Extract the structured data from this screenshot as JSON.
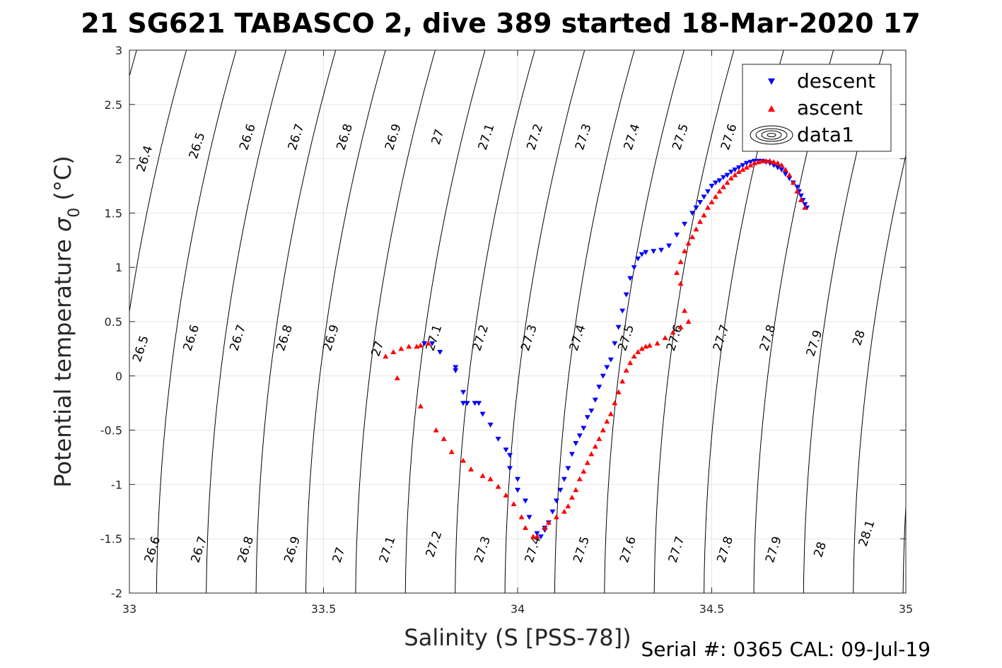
{
  "title": "21 SG621 TABASCO 2, dive 389 started 18-Mar-2020 17",
  "footer": "Serial #: 0365  CAL: 09-Jul-19",
  "chart_data": {
    "type": "scatter",
    "xlabel": "Salinity (S [PSS-78])",
    "ylabel_main": "Potential temperature ",
    "ylabel_sigma": "σ",
    "ylabel_sub": "0",
    "ylabel_unit": " (°C)",
    "xlim": [
      33,
      35
    ],
    "ylim": [
      -2,
      3
    ],
    "xticks": [
      33,
      33.5,
      34,
      34.5,
      35
    ],
    "xtick_labels": [
      "33",
      "33.5",
      "34",
      "34.5",
      "35"
    ],
    "yticks": [
      3,
      2.5,
      2,
      1.5,
      1,
      0.5,
      0,
      -0.5,
      -1,
      -1.5,
      -2
    ],
    "ytick_labels": [
      "3",
      "2.5",
      "2",
      "1.5",
      "1",
      "0.5",
      "0",
      "-0.5",
      "-1",
      "-1.5",
      "-2"
    ],
    "grid": true,
    "legend_position": "top-right",
    "legend": [
      "descent",
      "ascent",
      "data1"
    ],
    "colors": {
      "descent": "#0000ff",
      "ascent": "#ff0000",
      "contour": "#000000",
      "grid": "#e6e6e6"
    },
    "contour_levels": [
      26.4,
      26.5,
      26.6,
      26.7,
      26.8,
      26.9,
      27.0,
      27.1,
      27.2,
      27.3,
      27.4,
      27.5,
      27.6,
      27.7,
      27.8,
      27.9,
      28.0,
      28.1
    ],
    "contour_labels": [
      {
        "text": "26.4",
        "x": 33.04,
        "y": 2.0
      },
      {
        "text": "26.5",
        "x": 33.175,
        "y": 2.12
      },
      {
        "text": "26.6",
        "x": 33.305,
        "y": 2.2
      },
      {
        "text": "26.7",
        "x": 33.43,
        "y": 2.2
      },
      {
        "text": "26.8",
        "x": 33.555,
        "y": 2.2
      },
      {
        "text": "26.9",
        "x": 33.68,
        "y": 2.2
      },
      {
        "text": "27",
        "x": 33.795,
        "y": 2.2
      },
      {
        "text": "27.1",
        "x": 33.92,
        "y": 2.2
      },
      {
        "text": "27.2",
        "x": 34.045,
        "y": 2.2
      },
      {
        "text": "27.3",
        "x": 34.17,
        "y": 2.2
      },
      {
        "text": "27.4",
        "x": 34.295,
        "y": 2.2
      },
      {
        "text": "27.5",
        "x": 34.42,
        "y": 2.2
      },
      {
        "text": "27.6",
        "x": 34.545,
        "y": 2.2
      },
      {
        "text": "26.5",
        "x": 33.03,
        "y": 0.25
      },
      {
        "text": "26.6",
        "x": 33.16,
        "y": 0.35
      },
      {
        "text": "26.7",
        "x": 33.28,
        "y": 0.35
      },
      {
        "text": "26.8",
        "x": 33.4,
        "y": 0.35
      },
      {
        "text": "26.9",
        "x": 33.52,
        "y": 0.35
      },
      {
        "text": "27",
        "x": 33.64,
        "y": 0.25
      },
      {
        "text": "27.1",
        "x": 33.785,
        "y": 0.35
      },
      {
        "text": "27.2",
        "x": 33.905,
        "y": 0.35
      },
      {
        "text": "27.3",
        "x": 34.03,
        "y": 0.35
      },
      {
        "text": "27.4",
        "x": 34.155,
        "y": 0.35
      },
      {
        "text": "27.5",
        "x": 34.28,
        "y": 0.35
      },
      {
        "text": "27.6",
        "x": 34.405,
        "y": 0.35
      },
      {
        "text": "27.7",
        "x": 34.525,
        "y": 0.35
      },
      {
        "text": "27.8",
        "x": 34.645,
        "y": 0.35
      },
      {
        "text": "27.9",
        "x": 34.765,
        "y": 0.3
      },
      {
        "text": "28",
        "x": 34.88,
        "y": 0.35
      },
      {
        "text": "26.6",
        "x": 33.06,
        "y": -1.6
      },
      {
        "text": "26.7",
        "x": 33.18,
        "y": -1.6
      },
      {
        "text": "26.8",
        "x": 33.3,
        "y": -1.6
      },
      {
        "text": "26.9",
        "x": 33.42,
        "y": -1.6
      },
      {
        "text": "27",
        "x": 33.54,
        "y": -1.65
      },
      {
        "text": "27.1",
        "x": 33.665,
        "y": -1.6
      },
      {
        "text": "27.2",
        "x": 33.785,
        "y": -1.55
      },
      {
        "text": "27.3",
        "x": 33.91,
        "y": -1.6
      },
      {
        "text": "27.4",
        "x": 34.04,
        "y": -1.6
      },
      {
        "text": "27.5",
        "x": 34.165,
        "y": -1.6
      },
      {
        "text": "27.6",
        "x": 34.285,
        "y": -1.6
      },
      {
        "text": "27.7",
        "x": 34.41,
        "y": -1.6
      },
      {
        "text": "27.8",
        "x": 34.535,
        "y": -1.6
      },
      {
        "text": "27.9",
        "x": 34.66,
        "y": -1.6
      },
      {
        "text": "28",
        "x": 34.78,
        "y": -1.6
      },
      {
        "text": "28.1",
        "x": 34.9,
        "y": -1.45
      }
    ],
    "series": [
      {
        "name": "descent",
        "marker": "triangle-down",
        "x": [
          33.76,
          33.78,
          33.8,
          33.84,
          33.84,
          33.86,
          33.86,
          33.87,
          33.89,
          33.9,
          33.91,
          33.93,
          33.95,
          33.97,
          33.98,
          33.98,
          34.0,
          34.0,
          34.02,
          34.03,
          34.05,
          34.06,
          34.07,
          34.08,
          34.07,
          34.09,
          34.1,
          34.11,
          34.12,
          34.13,
          34.14,
          34.15,
          34.16,
          34.17,
          34.18,
          34.19,
          34.2,
          34.21,
          34.22,
          34.23,
          34.24,
          34.25,
          34.26,
          34.27,
          34.28,
          34.29,
          34.3,
          34.31,
          34.32,
          34.33,
          34.35,
          34.37,
          34.39,
          34.41,
          34.43,
          34.45,
          34.46,
          34.47,
          34.48,
          34.49,
          34.5,
          34.51,
          34.52,
          34.53,
          34.54,
          34.55,
          34.56,
          34.57,
          34.58,
          34.59,
          34.6,
          34.61,
          34.62,
          34.63,
          34.64,
          34.65,
          34.66,
          34.67,
          34.68,
          34.69,
          34.7,
          34.71,
          34.72,
          34.725,
          34.73,
          34.735,
          34.74,
          34.745
        ],
        "y": [
          0.3,
          0.3,
          0.22,
          0.08,
          0.05,
          -0.15,
          -0.25,
          -0.25,
          -0.25,
          -0.25,
          -0.35,
          -0.45,
          -0.58,
          -0.68,
          -0.73,
          -0.85,
          -0.95,
          -1.05,
          -1.15,
          -1.3,
          -1.45,
          -1.48,
          -1.42,
          -1.35,
          -1.4,
          -1.25,
          -1.15,
          -1.05,
          -0.95,
          -0.85,
          -0.72,
          -0.62,
          -0.55,
          -0.48,
          -0.38,
          -0.32,
          -0.22,
          -0.1,
          0.0,
          0.08,
          0.15,
          0.3,
          0.45,
          0.6,
          0.75,
          0.9,
          1.0,
          1.08,
          1.12,
          1.14,
          1.15,
          1.16,
          1.2,
          1.3,
          1.4,
          1.5,
          1.55,
          1.6,
          1.65,
          1.7,
          1.75,
          1.78,
          1.8,
          1.83,
          1.85,
          1.88,
          1.9,
          1.92,
          1.94,
          1.96,
          1.97,
          1.98,
          1.98,
          1.98,
          1.97,
          1.96,
          1.94,
          1.92,
          1.9,
          1.86,
          1.82,
          1.78,
          1.74,
          1.7,
          1.66,
          1.62,
          1.58,
          1.55
        ]
      },
      {
        "name": "ascent",
        "marker": "triangle-up",
        "x": [
          33.66,
          33.68,
          33.7,
          33.72,
          33.74,
          33.75,
          33.77,
          33.69,
          33.75,
          33.79,
          33.81,
          33.83,
          33.86,
          33.88,
          33.91,
          33.93,
          33.95,
          33.97,
          33.99,
          34.01,
          34.02,
          34.04,
          34.05,
          34.07,
          34.08,
          34.1,
          34.12,
          34.13,
          34.14,
          34.15,
          34.16,
          34.17,
          34.18,
          34.19,
          34.2,
          34.21,
          34.22,
          34.23,
          34.24,
          34.25,
          34.26,
          34.27,
          34.28,
          34.29,
          34.3,
          34.31,
          34.32,
          34.33,
          34.34,
          34.36,
          34.38,
          34.4,
          34.42,
          34.44,
          34.43,
          34.42,
          34.41,
          34.42,
          34.43,
          34.44,
          34.45,
          34.46,
          34.47,
          34.48,
          34.49,
          34.5,
          34.51,
          34.52,
          34.53,
          34.54,
          34.55,
          34.56,
          34.57,
          34.58,
          34.59,
          34.6,
          34.61,
          34.62,
          34.63,
          34.64,
          34.65,
          34.66,
          34.67,
          34.68,
          34.69,
          34.7,
          34.71,
          34.72,
          34.73,
          34.74
        ],
        "y": [
          0.18,
          0.22,
          0.25,
          0.27,
          0.27,
          0.28,
          0.3,
          -0.02,
          -0.28,
          -0.5,
          -0.58,
          -0.7,
          -0.78,
          -0.86,
          -0.92,
          -0.95,
          -1.02,
          -1.1,
          -1.18,
          -1.3,
          -1.4,
          -1.48,
          -1.48,
          -1.4,
          -1.35,
          -1.3,
          -1.25,
          -1.2,
          -1.12,
          -1.05,
          -0.95,
          -0.88,
          -0.8,
          -0.72,
          -0.65,
          -0.58,
          -0.5,
          -0.42,
          -0.35,
          -0.25,
          -0.15,
          -0.05,
          0.05,
          0.12,
          0.18,
          0.22,
          0.25,
          0.27,
          0.28,
          0.3,
          0.35,
          0.4,
          0.45,
          0.5,
          0.6,
          0.85,
          0.95,
          1.05,
          1.15,
          1.22,
          1.28,
          1.35,
          1.42,
          1.48,
          1.55,
          1.6,
          1.65,
          1.7,
          1.74,
          1.78,
          1.82,
          1.85,
          1.88,
          1.9,
          1.92,
          1.94,
          1.96,
          1.97,
          1.98,
          1.98,
          1.98,
          1.97,
          1.96,
          1.94,
          1.9,
          1.85,
          1.78,
          1.7,
          1.62,
          1.55
        ]
      }
    ]
  }
}
